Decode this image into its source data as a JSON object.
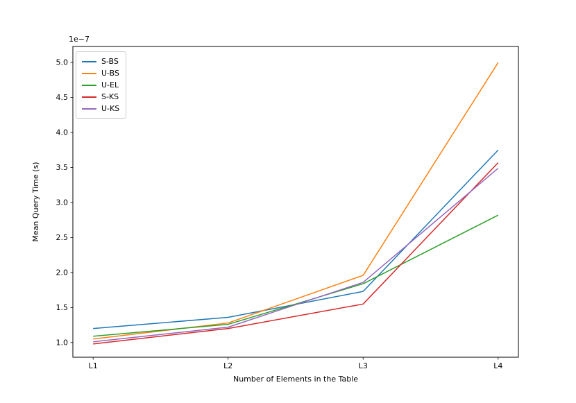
{
  "figure": {
    "background": "#ffffff",
    "text_color": "#000000",
    "spine_color": "#000000"
  },
  "chart_data": {
    "type": "line",
    "title": "",
    "xlabel": "Number of Elements in the Table",
    "ylabel": "Mean Query Time (s)",
    "y_offset_multiplier": "1e−7",
    "values_unit": "x 1e-7 s",
    "categories": [
      "L1",
      "L2",
      "L3",
      "L4"
    ],
    "series": [
      {
        "name": "S-BS",
        "color": "#1f77b4",
        "values": [
          1.2,
          1.36,
          1.73,
          3.75
        ]
      },
      {
        "name": "U-BS",
        "color": "#ff7f0e",
        "values": [
          1.05,
          1.28,
          1.96,
          5.0
        ]
      },
      {
        "name": "U-EL",
        "color": "#2ca02c",
        "values": [
          1.09,
          1.26,
          1.84,
          2.82
        ]
      },
      {
        "name": "S-KS",
        "color": "#d62728",
        "values": [
          0.98,
          1.2,
          1.55,
          3.57
        ]
      },
      {
        "name": "U-KS",
        "color": "#9467bd",
        "values": [
          1.01,
          1.22,
          1.86,
          3.49
        ]
      }
    ],
    "y_ticks": [
      1.0,
      1.5,
      2.0,
      2.5,
      3.0,
      3.5,
      4.0,
      4.5,
      5.0
    ],
    "ylim": [
      0.79,
      5.23
    ],
    "x_margin_frac": 0.05,
    "grid": false,
    "legend_position": "upper left",
    "line_width": 1.5
  }
}
